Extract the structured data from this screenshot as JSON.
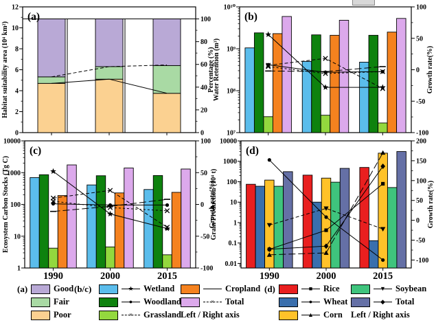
{
  "figure": {
    "background": "#ffffff",
    "artifact_partial_box": true
  },
  "chart_data": [
    {
      "id": "a",
      "letter": "(a)",
      "type": "bar+line",
      "bar_mode": "stacked",
      "categories": [
        "1990",
        "2000",
        "2015"
      ],
      "show_cat_labels": false,
      "left_axis": {
        "scale": "linear",
        "min": 0,
        "max": 12,
        "title": "Habitat suitability area (10⁴ km²)",
        "ticks": [
          {
            "v": 0,
            "t": "0"
          },
          {
            "v": 2,
            "t": "2"
          },
          {
            "v": 4,
            "t": "4"
          },
          {
            "v": 6,
            "t": "6"
          },
          {
            "v": 8,
            "t": "8"
          },
          {
            "v": 10,
            "t": "10"
          },
          {
            "v": 12,
            "t": "12"
          }
        ],
        "minor": [
          1,
          3,
          5,
          7,
          9,
          11
        ]
      },
      "right_axis": {
        "min": 0,
        "max": 100,
        "title": "Percentage (%)",
        "top_at_left_value": 10.85,
        "ticks": [
          {
            "v": 0,
            "t": "0"
          },
          {
            "v": 20,
            "t": "20"
          },
          {
            "v": 40,
            "t": "40"
          },
          {
            "v": 60,
            "t": "60"
          },
          {
            "v": 80,
            "t": "80"
          },
          {
            "v": 100,
            "t": "100"
          }
        ],
        "minor": [
          10,
          30,
          50,
          70,
          90
        ]
      },
      "total_line": 10.85,
      "series": [
        {
          "name": "Poor",
          "color": "#FBD191",
          "values": [
            4.7,
            5.1,
            3.75
          ]
        },
        {
          "name": "Fair",
          "color": "#A9DAA4",
          "values": [
            0.62,
            1.2,
            2.65
          ]
        },
        {
          "name": "Good",
          "color": "#B9A9D6",
          "values": [
            5.53,
            4.55,
            4.45
          ]
        }
      ],
      "lines": [
        {
          "name": "Poor share (%)",
          "marker": "none",
          "style": "solid",
          "values": [
            43.3,
            47,
            34.6
          ]
        },
        {
          "name": "Poor+Fair share (%)",
          "marker": "none",
          "style": "dashed",
          "values": [
            49,
            58,
            59.5
          ]
        }
      ]
    },
    {
      "id": "b",
      "letter": "(b)",
      "type": "bar+line",
      "bar_mode": "grouped",
      "categories": [
        "1990",
        "2000",
        "2015"
      ],
      "show_cat_labels": false,
      "left_axis": {
        "scale": "log",
        "min": 10000000.0,
        "max": 10000000000.0,
        "title": "Water Retention (m³)",
        "ticks": [
          {
            "v": 10000000000.0,
            "t": "10¹⁰"
          },
          {
            "v": 1000000000.0,
            "t": "10⁹"
          },
          {
            "v": 100000000.0,
            "t": "10⁸"
          },
          {
            "v": 10000000.0,
            "t": "10⁷"
          }
        ]
      },
      "right_axis": {
        "min": -100,
        "max": 100,
        "title": "Growth rate(%)",
        "ticks": [
          {
            "v": 100,
            "t": "100"
          },
          {
            "v": 50,
            "t": "50"
          },
          {
            "v": 0,
            "t": "0"
          },
          {
            "v": -50,
            "t": "-50"
          },
          {
            "v": -100,
            "t": "-100"
          }
        ],
        "minor": [
          75,
          25,
          -25,
          -75
        ]
      },
      "series": [
        {
          "name": "Wetland",
          "color": "#5BBDEC",
          "values": [
            1050000000.0,
            500000000.0,
            480000000.0
          ]
        },
        {
          "name": "Woodland",
          "color": "#0E820E",
          "values": [
            2400000000.0,
            2150000000.0,
            2100000000.0
          ]
        },
        {
          "name": "Grassland",
          "color": "#93D83E",
          "values": [
            24000000.0,
            26000000.0,
            17000000.0
          ]
        },
        {
          "name": "Cropland",
          "color": "#F5821F",
          "values": [
            2300000000.0,
            2100000000.0,
            2500000000.0
          ]
        },
        {
          "name": "Total",
          "color": "#DCA9EC",
          "values": [
            5900000000.0,
            4800000000.0,
            5300000000.0
          ]
        }
      ],
      "lines": [
        {
          "name": "Wetland growth",
          "marker": "star",
          "style": "solid",
          "values": [
            56,
            -28,
            -28
          ]
        },
        {
          "name": "Woodland growth",
          "marker": "circle",
          "style": "solid",
          "values": [
            8,
            -4,
            -3
          ]
        },
        {
          "name": "Grassland growth",
          "marker": "x",
          "style": "dashed",
          "values": [
            7,
            18,
            -30
          ]
        },
        {
          "name": "Cropland growth",
          "marker": "dash",
          "style": "longdash",
          "values": [
            -2,
            -3,
            5
          ]
        },
        {
          "name": "Total growth",
          "marker": "x",
          "style": "shortdash",
          "values": [
            5,
            -6,
            -3
          ]
        }
      ]
    },
    {
      "id": "c",
      "letter": "(c)",
      "type": "bar+line",
      "bar_mode": "grouped",
      "categories": [
        "1990",
        "2000",
        "2015"
      ],
      "show_cat_labels": true,
      "left_axis": {
        "scale": "log",
        "min": 1,
        "max": 10000,
        "title": "Ecosystem Carbon Stocks (Tg C)",
        "ticks": [
          {
            "v": 10000,
            "t": "10000"
          },
          {
            "v": 1000,
            "t": "1000"
          },
          {
            "v": 100,
            "t": "100"
          },
          {
            "v": 10,
            "t": "10"
          },
          {
            "v": 1,
            "t": "1"
          }
        ]
      },
      "right_axis": {
        "min": -100,
        "max": 100,
        "title": "Growth rate(%)",
        "ticks": [
          {
            "v": 100,
            "t": "100"
          },
          {
            "v": 50,
            "t": "50"
          },
          {
            "v": 0,
            "t": "0"
          },
          {
            "v": -50,
            "t": "-50"
          },
          {
            "v": -100,
            "t": "-100"
          }
        ],
        "minor": [
          75,
          25,
          -25,
          -75
        ]
      },
      "series": [
        {
          "name": "Wetland",
          "color": "#5BBDEC",
          "values": [
            700,
            410,
            295
          ]
        },
        {
          "name": "Woodland",
          "color": "#0E820E",
          "values": [
            860,
            800,
            810
          ]
        },
        {
          "name": "Grassland",
          "color": "#93D83E",
          "values": [
            4.2,
            4.6,
            2.6
          ]
        },
        {
          "name": "Cropland",
          "color": "#F5821F",
          "values": [
            190,
            230,
            240
          ]
        },
        {
          "name": "Total",
          "color": "#DCA9EC",
          "values": [
            1750,
            1400,
            1300
          ]
        }
      ],
      "lines": [
        {
          "name": "Wetland growth",
          "marker": "star",
          "style": "solid",
          "values": [
            52,
            -15,
            -38
          ]
        },
        {
          "name": "Woodland growth",
          "marker": "circle",
          "style": "solid",
          "values": [
            1,
            -1,
            -1
          ]
        },
        {
          "name": "Grassland growth",
          "marker": "x",
          "style": "dashed",
          "values": [
            10,
            22,
            -36
          ]
        },
        {
          "name": "Cropland growth",
          "marker": "dash",
          "style": "longdash",
          "values": [
            -11,
            -3,
            8
          ]
        },
        {
          "name": "Total growth",
          "marker": "x",
          "style": "shortdash",
          "values": [
            5,
            -5,
            -10
          ]
        }
      ]
    },
    {
      "id": "d",
      "letter": "(d)",
      "type": "bar+line",
      "bar_mode": "grouped",
      "categories": [
        "1990",
        "2000",
        "2015"
      ],
      "show_cat_labels": true,
      "left_axis": {
        "scale": "log",
        "min": 0.006,
        "max": 10000,
        "title": "Grain Production (10⁴ t)",
        "ticks": [
          {
            "v": 10000,
            "t": "10000"
          },
          {
            "v": 1000,
            "t": "1000"
          },
          {
            "v": 100,
            "t": "100"
          },
          {
            "v": 10,
            "t": "10"
          },
          {
            "v": 1,
            "t": "1"
          },
          {
            "v": 0.1,
            "t": "0.1"
          },
          {
            "v": 0.01,
            "t": "0.01"
          }
        ]
      },
      "right_axis": {
        "min": -120,
        "max": 200,
        "title": "Growth rate(%)",
        "ticks": [
          {
            "v": 200,
            "t": "200"
          },
          {
            "v": 150,
            "t": "150"
          },
          {
            "v": 100,
            "t": "100"
          },
          {
            "v": 50,
            "t": "50"
          },
          {
            "v": 0,
            "t": "0"
          },
          {
            "v": -50,
            "t": "-50"
          },
          {
            "v": -100,
            "t": "-100"
          }
        ],
        "minor": [
          175,
          125,
          75,
          25,
          -25,
          -75
        ]
      },
      "series": [
        {
          "name": "Rice",
          "color": "#E91F1F",
          "values": [
            75,
            210,
            500
          ]
        },
        {
          "name": "Wheat",
          "color": "#3A6FAD",
          "values": [
            60,
            10,
            0.13
          ]
        },
        {
          "name": "Corn",
          "color": "#FFC229",
          "values": [
            120,
            150,
            2500
          ]
        },
        {
          "name": "Soybean",
          "color": "#3FC47D",
          "values": [
            60,
            95,
            52
          ]
        },
        {
          "name": "Total",
          "color": "#6570A6",
          "values": [
            310,
            450,
            3000
          ]
        }
      ],
      "lines": [
        {
          "name": "Rice growth",
          "marker": "square",
          "style": "solid",
          "values": [
            -73,
            -25,
            92
          ]
        },
        {
          "name": "Wheat growth",
          "marker": "circle",
          "style": "solid",
          "values": [
            152,
            8,
            -100
          ]
        },
        {
          "name": "Corn growth",
          "marker": "triangle-up",
          "style": "longdash",
          "values": [
            -87,
            -82,
            170
          ]
        },
        {
          "name": "Soybean growth",
          "marker": "triangle-down",
          "style": "dashed",
          "values": [
            -12,
            30,
            -22
          ]
        },
        {
          "name": "Total growth",
          "marker": "diamond",
          "style": "solid",
          "values": [
            -73,
            -65,
            136
          ]
        }
      ]
    }
  ],
  "legend": {
    "columns": [
      {
        "header": "(a)",
        "items": [
          {
            "label": "Good",
            "swatch": "#B9A9D6"
          },
          {
            "label": "Fair",
            "swatch": "#A9DAA4"
          },
          {
            "label": "Poor",
            "swatch": "#FBD191"
          }
        ]
      },
      {
        "header": "(b/c)",
        "items": [
          {
            "label": "Wetland",
            "swatch": "#5BBDEC",
            "marker": "★",
            "line": "solid"
          },
          {
            "label": "Woodland",
            "swatch": "#0E820E",
            "marker": "●",
            "line": "solid"
          },
          {
            "label": "Grassland",
            "swatch": "#93D83E",
            "marker": "×",
            "line": "dashed"
          }
        ]
      },
      {
        "items": [
          {
            "label": "Cropland",
            "swatch": "#F5821F",
            "marker": "",
            "line": "solid"
          },
          {
            "label": "Total",
            "swatch": "#DCA9EC",
            "marker": "×",
            "line": "dashed"
          }
        ],
        "footer": "Left / Right axis"
      },
      {
        "header": "(d)",
        "items": [
          {
            "label": "Rice",
            "swatch": "#E91F1F",
            "marker": "■",
            "line": "solid"
          },
          {
            "label": "Wheat",
            "swatch": "#3A6FAD",
            "marker": "●",
            "line": "solid"
          },
          {
            "label": "Corn",
            "swatch": "#FFC229",
            "marker": "▲",
            "line": "solid"
          }
        ]
      },
      {
        "items": [
          {
            "label": "Soybean",
            "swatch": "#3FC47D",
            "marker": "▼",
            "line": "solid"
          },
          {
            "label": "Total",
            "swatch": "#6570A6",
            "marker": "◆",
            "line": "solid"
          }
        ],
        "footer": "Left / Right axis"
      }
    ]
  }
}
